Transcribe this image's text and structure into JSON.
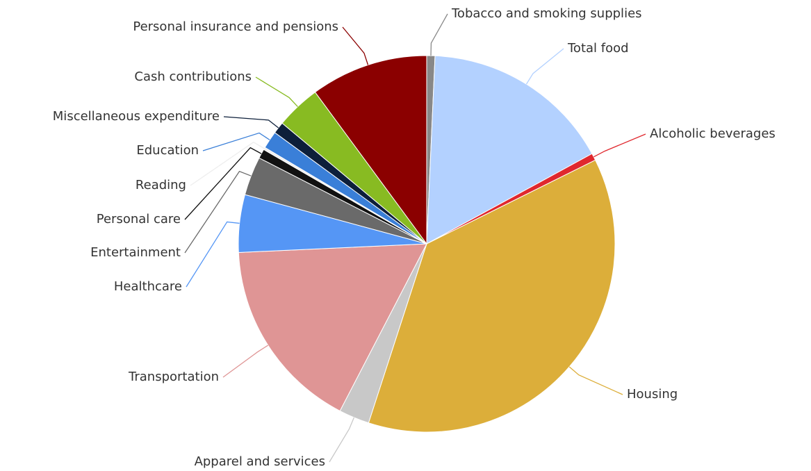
{
  "chart_data": {
    "type": "pie",
    "categories": [
      "Tobacco and smoking supplies",
      "Total food",
      "Alcoholic beverages",
      "Housing",
      "Apparel and services",
      "Transportation",
      "Healthcare",
      "Entertainment",
      "Personal care",
      "Reading",
      "Education",
      "Miscellaneous expenditure",
      "Cash contributions",
      "Personal insurance and pensions"
    ],
    "values": [
      0.7,
      16.2,
      0.6,
      37,
      2.6,
      16.5,
      4.9,
      3.3,
      0.8,
      0.2,
      1.5,
      1,
      3.8,
      10
    ],
    "colors": [
      "#888888",
      "#b3d1ff",
      "#e0282e",
      "#dcae3a",
      "#c8c8c8",
      "#df9595",
      "#5596f5",
      "#6a6a6a",
      "#111111",
      "#eeeeee",
      "#3a7fd8",
      "#0d1f3a",
      "#88bb22",
      "#8b0000"
    ]
  }
}
